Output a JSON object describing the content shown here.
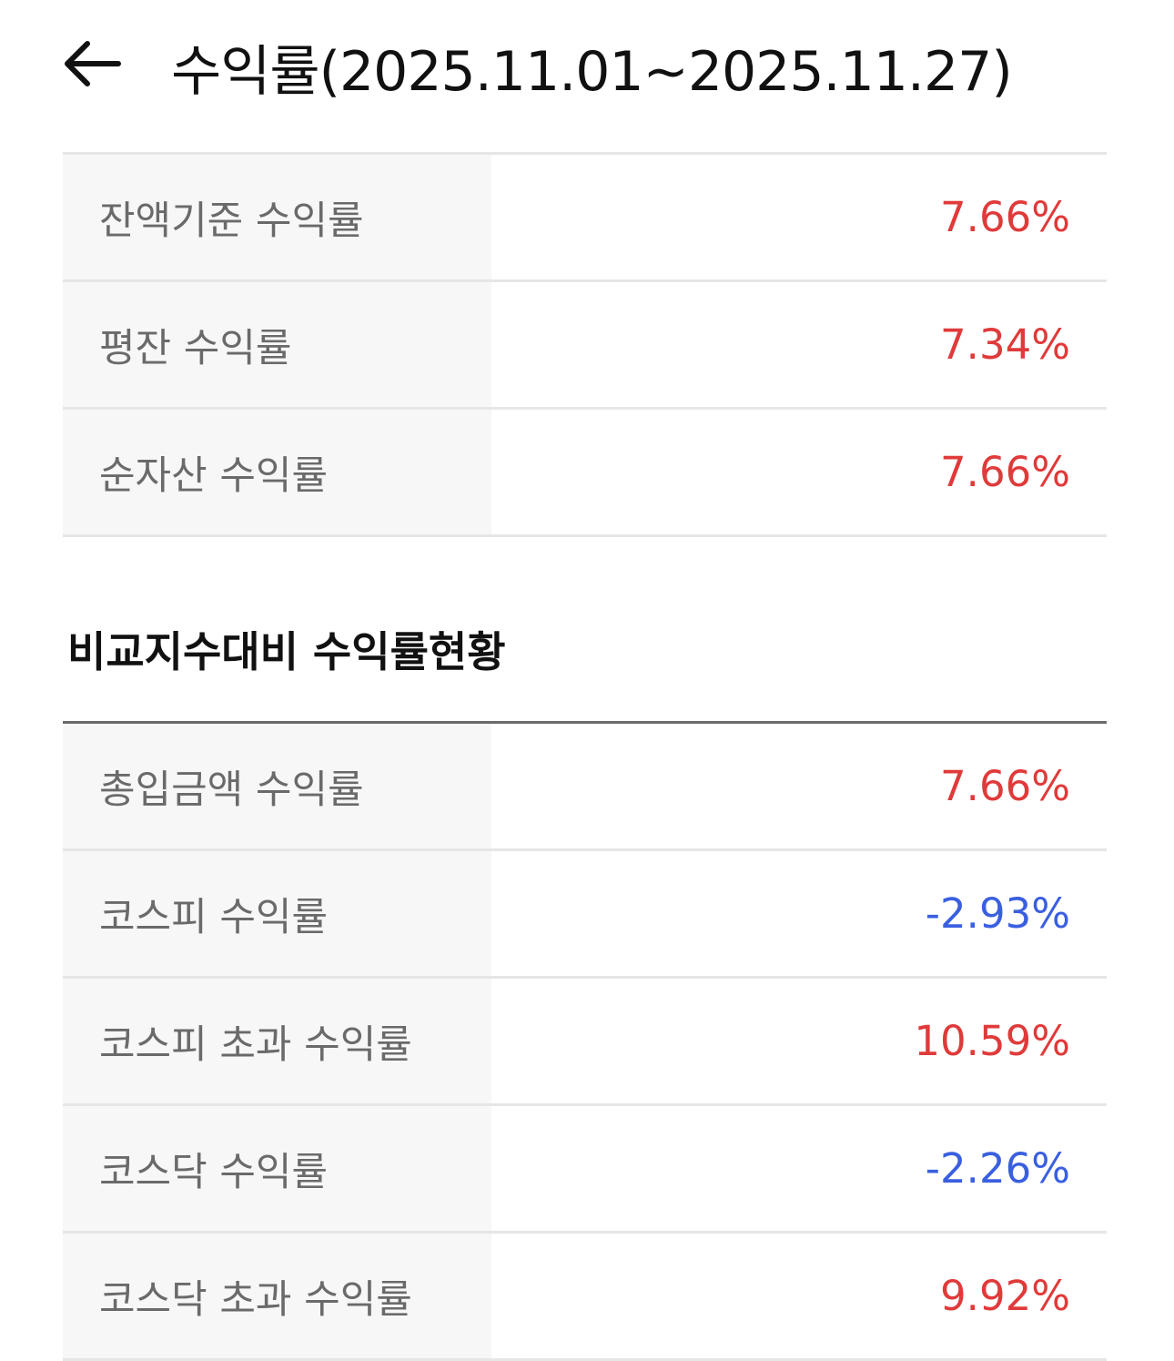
{
  "header": {
    "title": "수익률(2025.11.01~2025.11.27)",
    "back_icon": "arrow-left-icon"
  },
  "colors": {
    "positive": "#e03a3a",
    "negative": "#3a5fe0"
  },
  "summary": [
    {
      "label": "잔액기준 수익률",
      "value": "7.66%",
      "sign": "pos"
    },
    {
      "label": "평잔 수익률",
      "value": "7.34%",
      "sign": "pos"
    },
    {
      "label": "순자산 수익률",
      "value": "7.66%",
      "sign": "pos"
    }
  ],
  "comparison": {
    "title": "비교지수대비 수익률현황",
    "rows": [
      {
        "label": "총입금액 수익률",
        "value": "7.66%",
        "sign": "pos"
      },
      {
        "label": "코스피 수익률",
        "value": "-2.93%",
        "sign": "neg"
      },
      {
        "label": "코스피 초과 수익률",
        "value": "10.59%",
        "sign": "pos"
      },
      {
        "label": "코스닥 수익률",
        "value": "-2.26%",
        "sign": "neg"
      },
      {
        "label": "코스닥 초과 수익률",
        "value": "9.92%",
        "sign": "pos"
      }
    ]
  }
}
